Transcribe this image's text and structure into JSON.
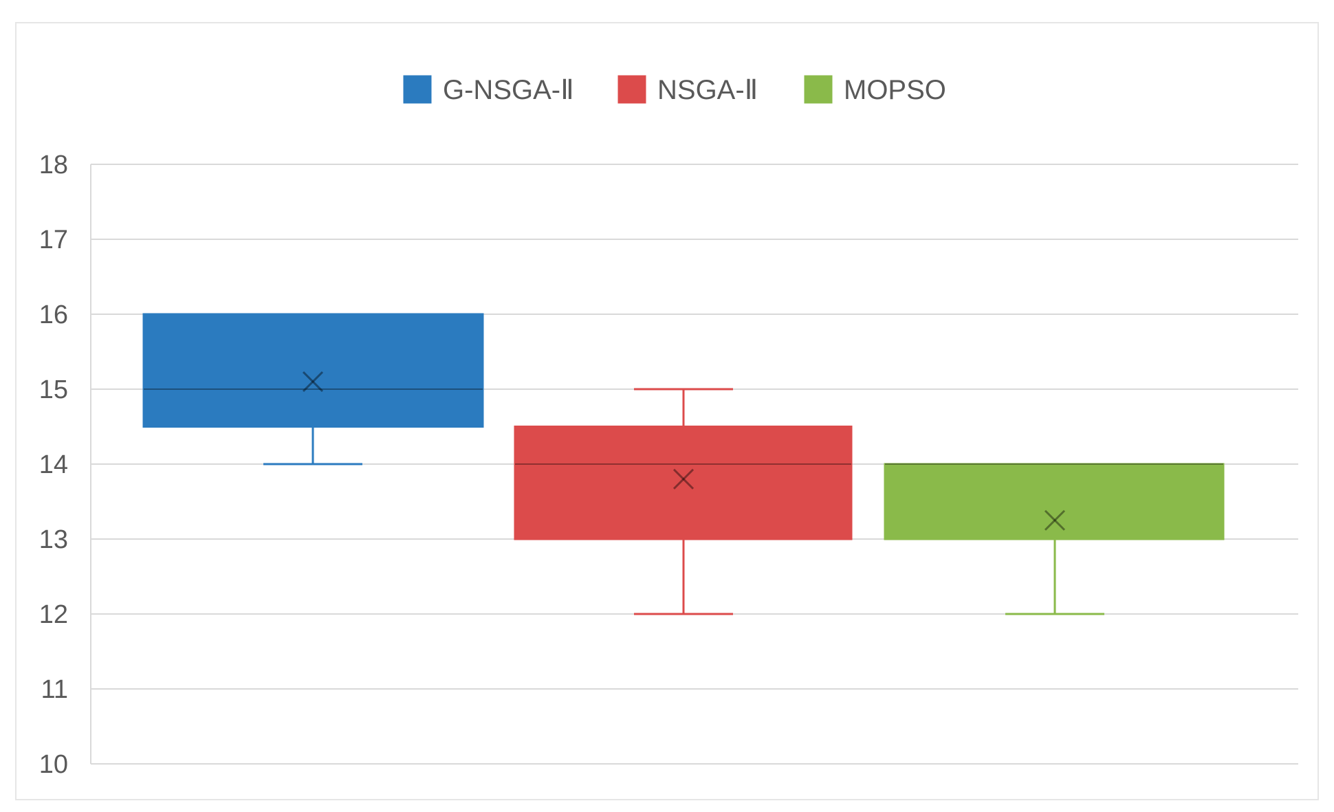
{
  "chart_data": {
    "type": "box",
    "title": "",
    "xlabel": "",
    "ylabel": "",
    "ylim": [
      10,
      18
    ],
    "yticks": [
      10,
      11,
      12,
      13,
      14,
      15,
      16,
      17,
      18
    ],
    "grid": true,
    "legend_position": "top",
    "series": [
      {
        "name": "G-NSGA-Ⅱ",
        "color": "#2b7bbf",
        "min": 14,
        "q1": 14.5,
        "median": 15,
        "q3": 16,
        "max": 16,
        "mean": 15.1
      },
      {
        "name": "NSGA-Ⅱ",
        "color": "#dc4b4b",
        "min": 12,
        "q1": 13,
        "median": 14,
        "q3": 14.5,
        "max": 15,
        "mean": 13.8
      },
      {
        "name": "MOPSO",
        "color": "#8aba4a",
        "min": 12,
        "q1": 13,
        "median": 14,
        "q3": 14,
        "max": 14,
        "mean": 13.25
      }
    ]
  }
}
